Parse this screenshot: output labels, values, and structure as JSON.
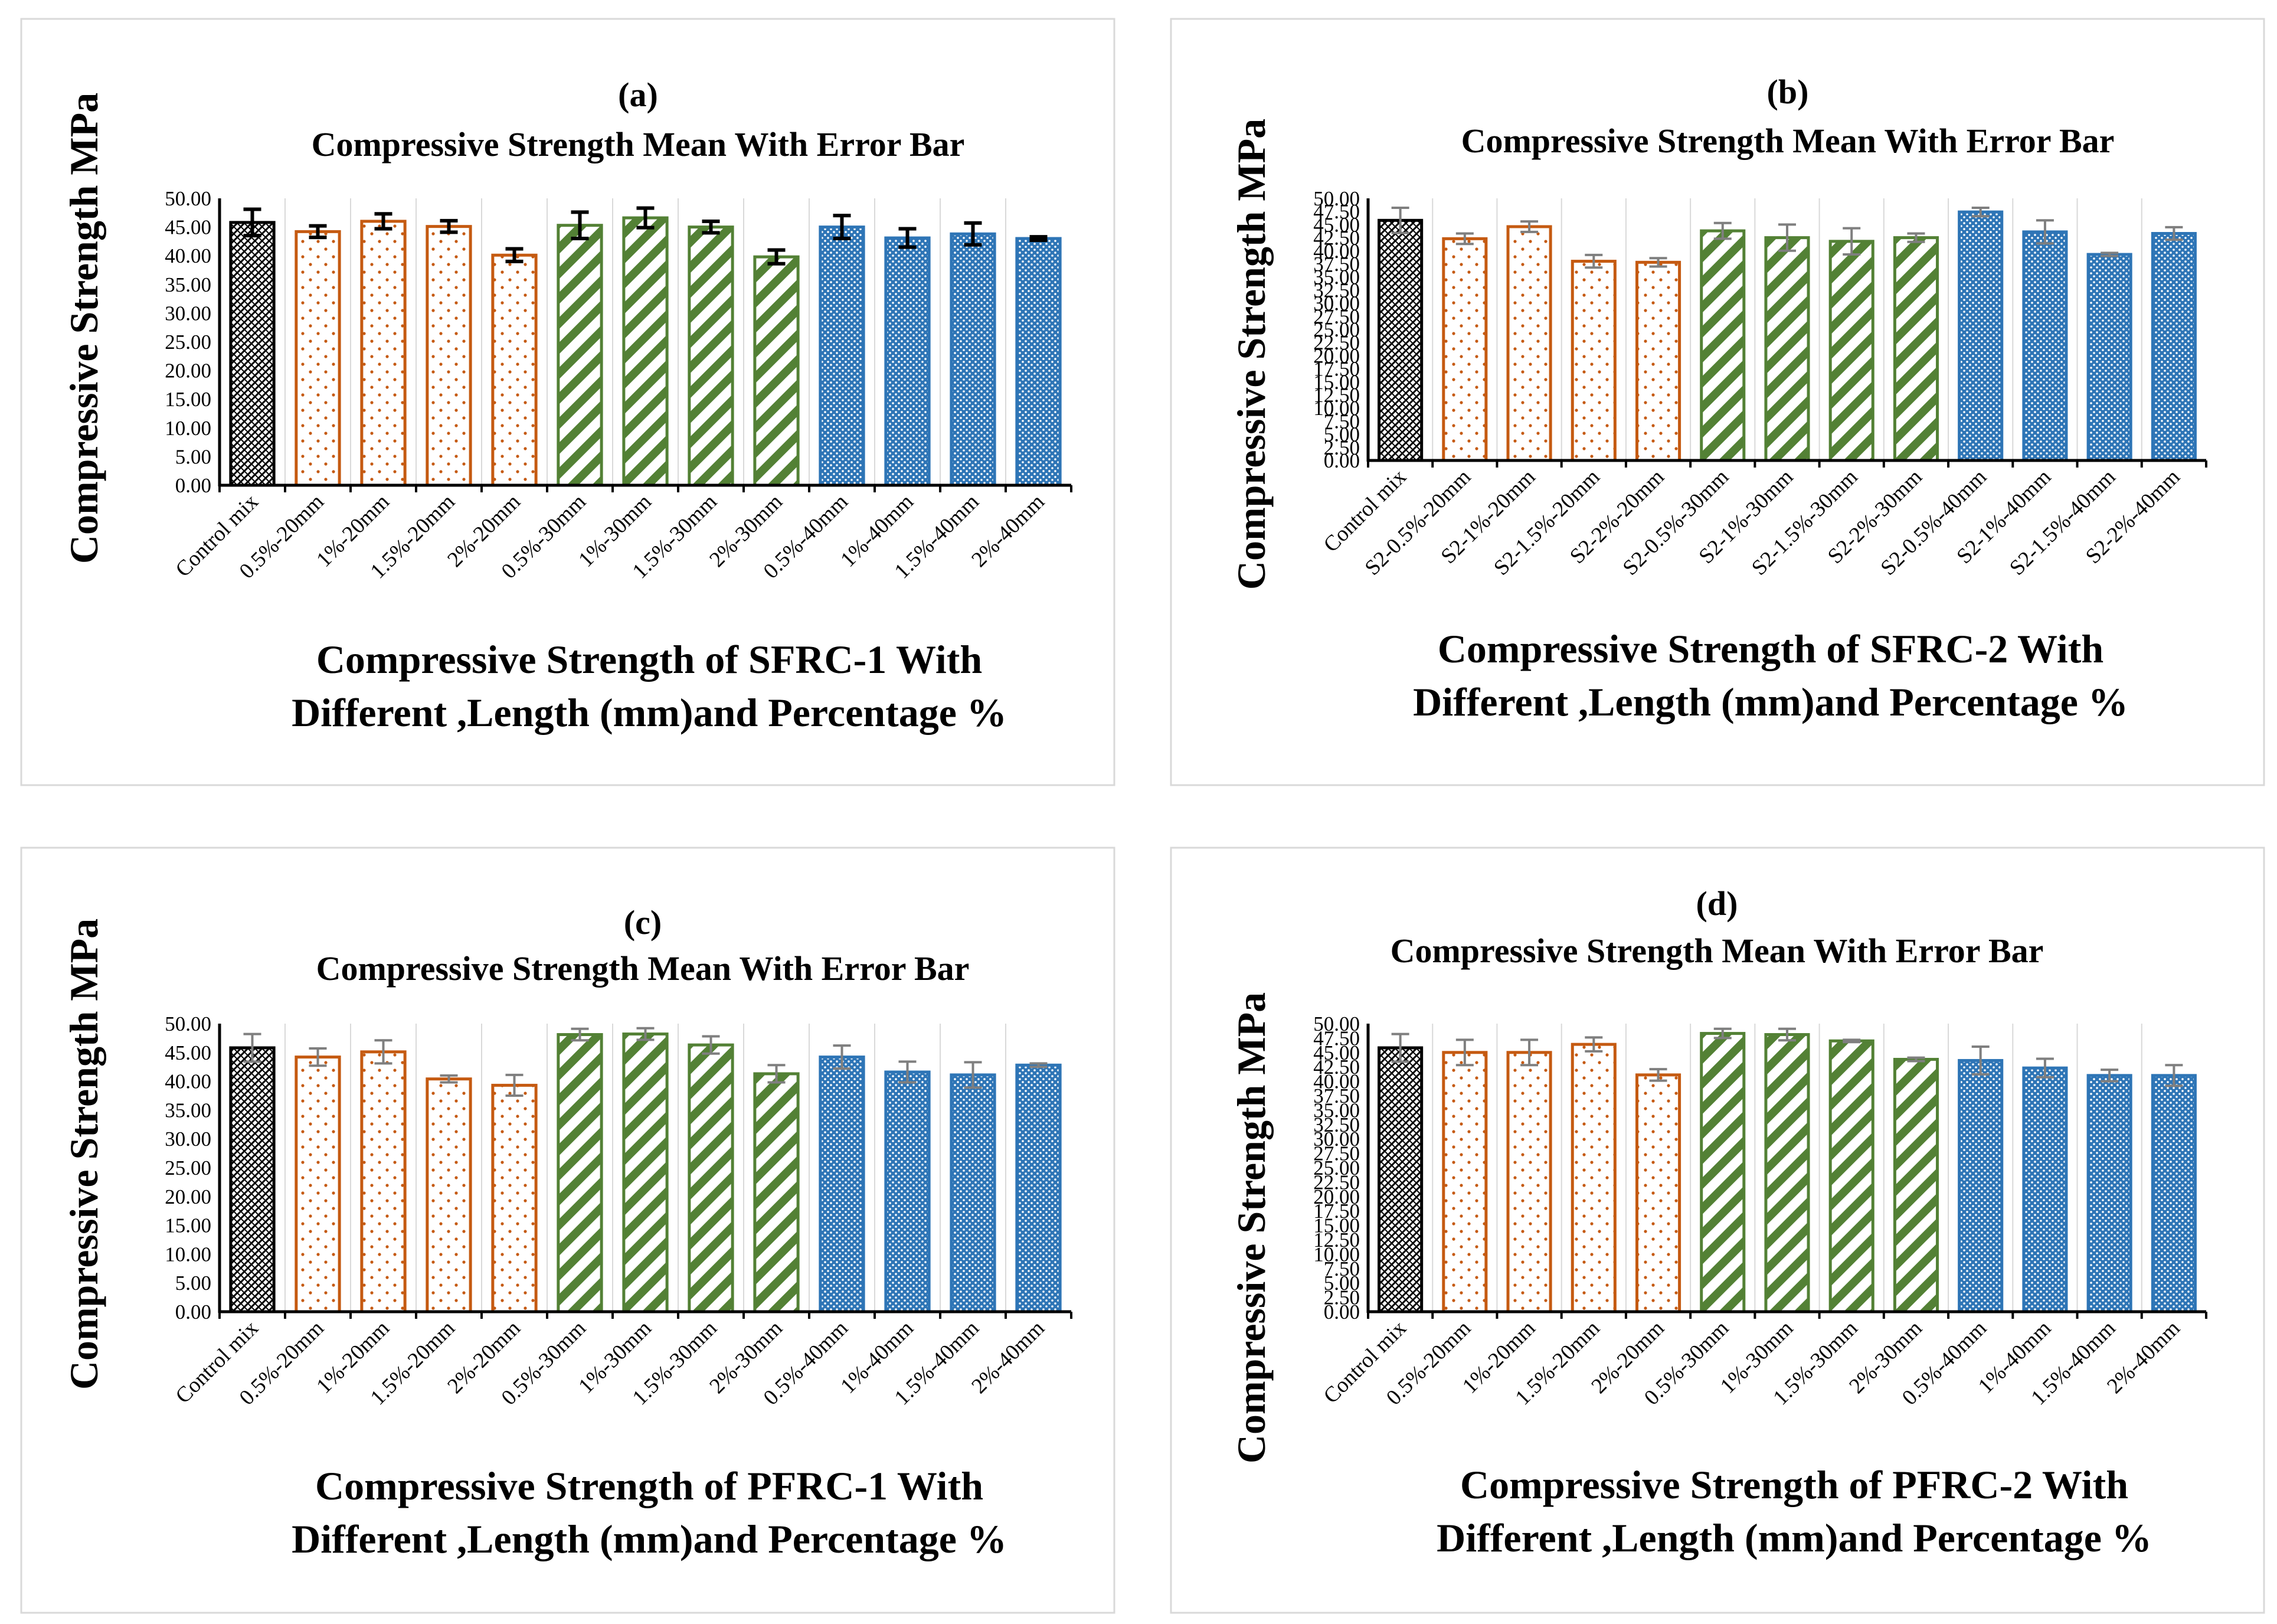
{
  "figure": {
    "colors": {
      "control": "#000000",
      "mm20": "#c55a11",
      "mm30": "#538135",
      "mm40": "#2e75b6",
      "grid": "#d9d9d9",
      "frame": "#d9d9d9"
    }
  },
  "chart_data": [
    {
      "type": "bar",
      "letter": "(a)",
      "title": "Compressive  Strength  Mean  With  Error  Bar",
      "ylabel": "Compressive  Strength  MPa",
      "xlabel_line1": "Compressive Strength of SFRC-1 With",
      "xlabel_line2": "Different  ,Length (mm)and Percentage %",
      "ylim": [
        0,
        50
      ],
      "ytick_step": 5,
      "yticks": [
        "0.00",
        "5.00",
        "10.00",
        "15.00",
        "20.00",
        "25.00",
        "30.00",
        "35.00",
        "40.00",
        "45.00",
        "50.00"
      ],
      "categories": [
        "Control mix",
        "0.5%-20mm",
        "1%-20mm",
        "1.5%-20mm",
        "2%-20mm",
        "0.5%-30mm",
        "1%-30mm",
        "1.5%-30mm",
        "2%-30mm",
        "0.5%-40mm",
        "1%-40mm",
        "1.5%-40mm",
        "2%-40mm"
      ],
      "values": [
        45.8,
        44.2,
        46.0,
        45.1,
        40.1,
        45.3,
        46.6,
        45.0,
        39.8,
        45.0,
        43.1,
        43.8,
        43.0
      ],
      "errors": [
        2.3,
        1.0,
        1.3,
        1.0,
        1.1,
        2.3,
        1.7,
        1.0,
        1.2,
        2.0,
        1.6,
        1.9,
        0.3
      ],
      "groups": [
        "control",
        "mm20",
        "mm20",
        "mm20",
        "mm20",
        "mm30",
        "mm30",
        "mm30",
        "mm30",
        "mm40",
        "mm40",
        "mm40",
        "mm40"
      ],
      "error_color": "#000000"
    },
    {
      "type": "bar",
      "letter": "(b)",
      "title": "Compressive  Strength  Mean  With  Error  Bar",
      "ylabel": "Compressive  Strength  MPa",
      "xlabel_line1": "Compressive Strength of SFRC-2 With",
      "xlabel_line2": "Different  ,Length (mm)and Percentage %",
      "ylim": [
        0,
        50
      ],
      "ytick_step": 2.5,
      "yticks": [
        "0.00",
        "2.50",
        "5.00",
        "7.50",
        "10.00",
        "12.50",
        "15.00",
        "17.50",
        "20.00",
        "22.50",
        "25.00",
        "27.50",
        "30.00",
        "32.50",
        "35.00",
        "37.50",
        "40.00",
        "42.50",
        "45.00",
        "47.50",
        "50.00"
      ],
      "categories": [
        "Control mix",
        "S2-0.5%-20mm",
        "S2-1%-20mm",
        "S2-1.5%-20mm",
        "S2-2%-20mm",
        "S2-0.5%-30mm",
        "S2-1%-30mm",
        "S2-1.5%-30mm",
        "S2-2%-30mm",
        "S2-0.5%-40mm",
        "S2-1%-40mm",
        "S2-1.5%-40mm",
        "S2-2%-40mm"
      ],
      "values": [
        45.8,
        42.3,
        44.6,
        38.0,
        37.8,
        43.8,
        42.5,
        41.8,
        42.5,
        47.4,
        43.6,
        39.3,
        43.3
      ],
      "errors": [
        2.4,
        1.0,
        1.0,
        1.2,
        0.8,
        1.5,
        2.5,
        2.5,
        0.8,
        0.8,
        2.2,
        0.3,
        1.2
      ],
      "groups": [
        "control",
        "mm20",
        "mm20",
        "mm20",
        "mm20",
        "mm30",
        "mm30",
        "mm30",
        "mm30",
        "mm40",
        "mm40",
        "mm40",
        "mm40"
      ],
      "error_color": "#7f7f7f"
    },
    {
      "type": "bar",
      "letter": "(c)",
      "title": "Compressive  Strength  Mean  With  Error  Bar",
      "ylabel": "Compressive  Strength  MPa",
      "xlabel_line1": "Compressive Strength of PFRC-1 With",
      "xlabel_line2": "Different  ,Length (mm)and Percentage %",
      "ylim": [
        0,
        50
      ],
      "ytick_step": 5,
      "yticks": [
        "0.00",
        "5.00",
        "10.00",
        "15.00",
        "20.00",
        "25.00",
        "30.00",
        "35.00",
        "40.00",
        "45.00",
        "50.00"
      ],
      "categories": [
        "Control mix",
        "0.5%-20mm",
        "1%-20mm",
        "1.5%-20mm",
        "2%-20mm",
        "0.5%-30mm",
        "1%-30mm",
        "1.5%-30mm",
        "2%-30mm",
        "0.5%-40mm",
        "1%-40mm",
        "1.5%-40mm",
        "2%-40mm"
      ],
      "values": [
        45.8,
        44.2,
        45.1,
        40.4,
        39.3,
        48.1,
        48.2,
        46.3,
        41.3,
        44.2,
        41.6,
        41.1,
        42.8
      ],
      "errors": [
        2.4,
        1.5,
        2.0,
        0.6,
        1.8,
        1.0,
        1.0,
        1.5,
        1.5,
        2.0,
        1.8,
        2.2,
        0.3
      ],
      "groups": [
        "control",
        "mm20",
        "mm20",
        "mm20",
        "mm20",
        "mm30",
        "mm30",
        "mm30",
        "mm30",
        "mm40",
        "mm40",
        "mm40",
        "mm40"
      ],
      "error_color": "#7f7f7f"
    },
    {
      "type": "bar",
      "letter": "(d)",
      "title": "Compressive  Strength  Mean  With  Error  Bar",
      "ylabel": "Compressive  Strength  MPa",
      "xlabel_line1": "Compressive Strength of PFRC-2 With",
      "xlabel_line2": "Different  ,Length (mm)and Percentage %",
      "ylim": [
        0,
        50
      ],
      "ytick_step": 2.5,
      "yticks": [
        "0.00",
        "2.50",
        "5.00",
        "7.50",
        "10.00",
        "12.50",
        "15.00",
        "17.50",
        "20.00",
        "22.50",
        "25.00",
        "27.50",
        "30.00",
        "32.50",
        "35.00",
        "37.50",
        "40.00",
        "42.50",
        "45.00",
        "47.50",
        "50.00"
      ],
      "categories": [
        "Control mix",
        "0.5%-20mm",
        "1%-20mm",
        "1.5%-20mm",
        "2%-20mm",
        "0.5%-30mm",
        "1%-30mm",
        "1.5%-30mm",
        "2%-30mm",
        "0.5%-40mm",
        "1%-40mm",
        "1.5%-40mm",
        "2%-40mm"
      ],
      "values": [
        45.8,
        45.0,
        45.0,
        46.4,
        41.1,
        48.3,
        48.1,
        47.0,
        43.8,
        43.6,
        42.3,
        41.0,
        41.0
      ],
      "errors": [
        2.4,
        2.2,
        2.2,
        1.2,
        1.0,
        0.8,
        1.0,
        0.2,
        0.3,
        2.4,
        1.6,
        1.0,
        1.8
      ],
      "groups": [
        "control",
        "mm20",
        "mm20",
        "mm20",
        "mm20",
        "mm30",
        "mm30",
        "mm30",
        "mm30",
        "mm40",
        "mm40",
        "mm40",
        "mm40"
      ],
      "error_color": "#7f7f7f"
    }
  ]
}
